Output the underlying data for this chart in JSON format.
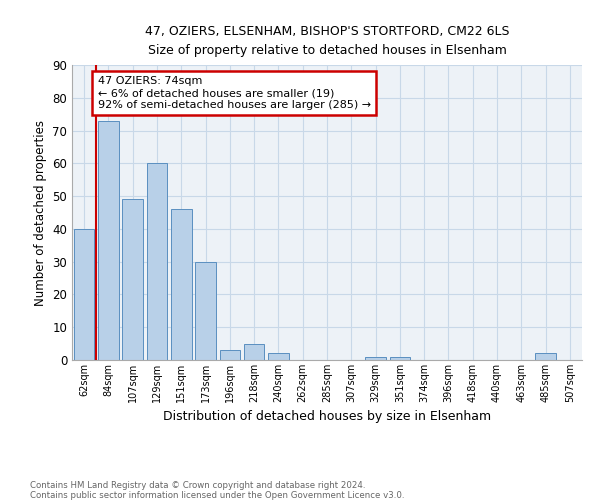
{
  "title1": "47, OZIERS, ELSENHAM, BISHOP'S STORTFORD, CM22 6LS",
  "title2": "Size of property relative to detached houses in Elsenham",
  "xlabel": "Distribution of detached houses by size in Elsenham",
  "ylabel": "Number of detached properties",
  "bins": [
    "62sqm",
    "84sqm",
    "107sqm",
    "129sqm",
    "151sqm",
    "173sqm",
    "196sqm",
    "218sqm",
    "240sqm",
    "262sqm",
    "285sqm",
    "307sqm",
    "329sqm",
    "351sqm",
    "374sqm",
    "396sqm",
    "418sqm",
    "440sqm",
    "463sqm",
    "485sqm",
    "507sqm"
  ],
  "values": [
    40,
    73,
    49,
    60,
    46,
    30,
    3,
    5,
    2,
    0,
    0,
    0,
    1,
    1,
    0,
    0,
    0,
    0,
    0,
    2,
    0
  ],
  "bar_color": "#b8d0e8",
  "bar_edge_color": "#5a8fc0",
  "annotation_text": "47 OZIERS: 74sqm\n← 6% of detached houses are smaller (19)\n92% of semi-detached houses are larger (285) →",
  "annotation_box_color": "#ffffff",
  "annotation_box_edge": "#cc0000",
  "red_line_color": "#cc0000",
  "ylim": [
    0,
    90
  ],
  "yticks": [
    0,
    10,
    20,
    30,
    40,
    50,
    60,
    70,
    80,
    90
  ],
  "footer1": "Contains HM Land Registry data © Crown copyright and database right 2024.",
  "footer2": "Contains public sector information licensed under the Open Government Licence v3.0.",
  "grid_color": "#c8d8e8",
  "bg_color": "#edf2f7"
}
